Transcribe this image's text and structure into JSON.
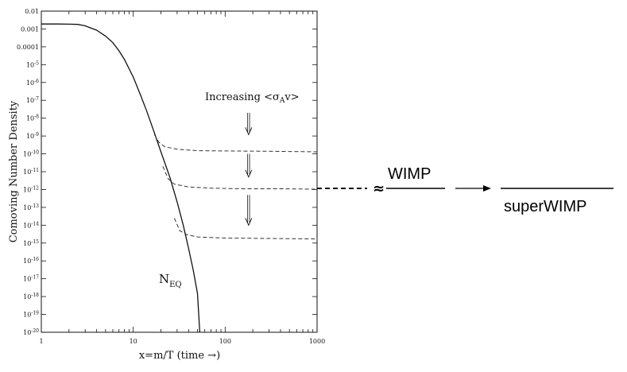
{
  "chart_data": {
    "type": "line",
    "x_scale": "log",
    "y_scale": "log",
    "xlim": [
      1,
      1000
    ],
    "ylim": [
      1e-20,
      0.01
    ],
    "xlabel": "x=m/T (time →)",
    "ylabel": "Comoving Number Density",
    "x_ticks": [
      {
        "value": 1,
        "label": "1"
      },
      {
        "value": 10,
        "label": "10"
      },
      {
        "value": 100,
        "label": "100"
      },
      {
        "value": 1000,
        "label": "1000"
      }
    ],
    "y_ticks": [
      {
        "value": 0.01,
        "label": "0.01",
        "exp": ""
      },
      {
        "value": 0.001,
        "label": "0.001",
        "exp": ""
      },
      {
        "value": 0.0001,
        "label": "0.0001",
        "exp": ""
      },
      {
        "value": 1e-05,
        "label": "10",
        "exp": "-5"
      },
      {
        "value": 1e-06,
        "label": "10",
        "exp": "-6"
      },
      {
        "value": 1e-07,
        "label": "10",
        "exp": "-7"
      },
      {
        "value": 1e-08,
        "label": "10",
        "exp": "-8"
      },
      {
        "value": 1e-09,
        "label": "10",
        "exp": "-9"
      },
      {
        "value": 1e-10,
        "label": "10",
        "exp": "-10"
      },
      {
        "value": 1e-11,
        "label": "10",
        "exp": "-11"
      },
      {
        "value": 1e-12,
        "label": "10",
        "exp": "-12"
      },
      {
        "value": 1e-13,
        "label": "10",
        "exp": "-13"
      },
      {
        "value": 1e-14,
        "label": "10",
        "exp": "-14"
      },
      {
        "value": 1e-15,
        "label": "10",
        "exp": "-15"
      },
      {
        "value": 1e-16,
        "label": "10",
        "exp": "-16"
      },
      {
        "value": 1e-17,
        "label": "10",
        "exp": "-17"
      },
      {
        "value": 1e-18,
        "label": "10",
        "exp": "-18"
      },
      {
        "value": 1e-19,
        "label": "10",
        "exp": "-19"
      },
      {
        "value": 1e-20,
        "label": "10",
        "exp": "-20"
      }
    ],
    "equilibrium_curve": {
      "label": "N",
      "label_sub": "EQ",
      "points": [
        [
          1,
          0.0019
        ],
        [
          1.5,
          0.0019
        ],
        [
          2,
          0.00185
        ],
        [
          2.5,
          0.0018
        ],
        [
          3,
          0.0015
        ],
        [
          4,
          0.00085
        ],
        [
          5,
          0.0004
        ],
        [
          6,
          0.00017
        ],
        [
          7,
          6e-05
        ],
        [
          8,
          2e-05
        ],
        [
          10,
          2e-06
        ],
        [
          12,
          2e-07
        ],
        [
          14,
          2.5e-08
        ],
        [
          17,
          1.5e-09
        ],
        [
          20,
          1.3e-10
        ],
        [
          25,
          5e-12
        ],
        [
          30,
          2e-13
        ],
        [
          35,
          1e-14
        ],
        [
          40,
          5e-16
        ],
        [
          45,
          3e-17
        ],
        [
          50,
          1.5e-18
        ],
        [
          53,
          1e-20
        ]
      ]
    },
    "series": [
      {
        "style": "dashed",
        "points": [
          [
            17,
            1.2e-09
          ],
          [
            19,
            4.5e-10
          ],
          [
            22,
            2.5e-10
          ],
          [
            30,
            1.8e-10
          ],
          [
            50,
            1.5e-10
          ],
          [
            100,
            1.45e-10
          ],
          [
            300,
            1.4e-10
          ],
          [
            1000,
            1.3e-10
          ]
        ]
      },
      {
        "style": "dashed",
        "points": [
          [
            21,
            2e-11
          ],
          [
            24,
            4e-12
          ],
          [
            28,
            2e-12
          ],
          [
            40,
            1.4e-12
          ],
          [
            70,
            1.2e-12
          ],
          [
            150,
            1.1e-12
          ],
          [
            400,
            1.1e-12
          ],
          [
            1000,
            1.05e-12
          ]
        ]
      },
      {
        "style": "dashed",
        "points": [
          [
            28,
            2.5e-14
          ],
          [
            32,
            5e-15
          ],
          [
            38,
            3e-15
          ],
          [
            50,
            2.2e-15
          ],
          [
            100,
            1.9e-15
          ],
          [
            300,
            1.8e-15
          ],
          [
            1000,
            1.7e-15
          ]
        ]
      }
    ],
    "arrows": [
      {
        "x": 180,
        "y_from": 2e-08,
        "y_to": 1.2e-09
      },
      {
        "x": 180,
        "y_from": 1e-10,
        "y_to": 5e-12
      },
      {
        "x": 180,
        "y_from": 5e-13,
        "y_to": 1e-14
      }
    ],
    "annotation": {
      "text": "Increasing <σ",
      "sub": "A",
      "text_after": "v>"
    }
  },
  "side": {
    "approx": "≈",
    "wimp": "WIMP",
    "superwimp": "superWIMP"
  }
}
